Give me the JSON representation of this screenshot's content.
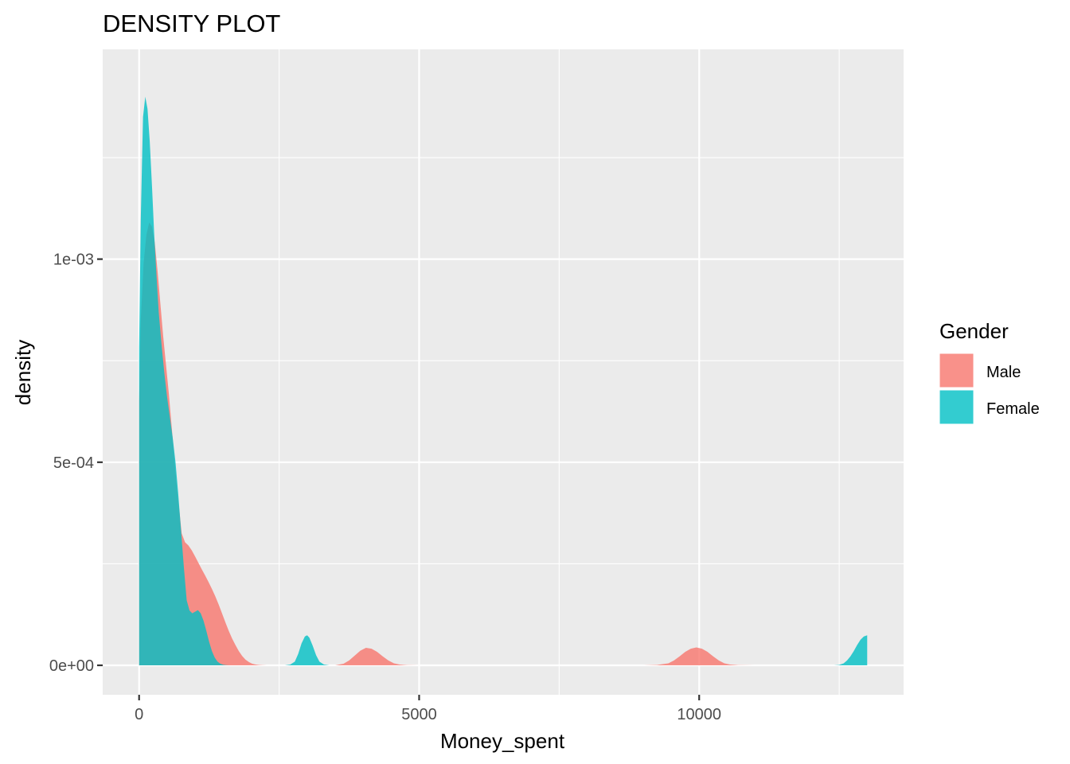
{
  "chart_data": {
    "type": "area",
    "subtype": "density",
    "title": "DENSITY PLOT",
    "xlabel": "Money_spent",
    "ylabel": "density",
    "xlim": [
      -650,
      13650
    ],
    "ylim": [
      -7.25e-05,
      0.0015165
    ],
    "x_ticks": [
      {
        "value": 0,
        "label": "0"
      },
      {
        "value": 5000,
        "label": "5000"
      },
      {
        "value": 10000,
        "label": "10000"
      }
    ],
    "x_minor_ticks": [
      2500,
      7500,
      12500
    ],
    "y_ticks": [
      {
        "value": 0,
        "label": "0e+00"
      },
      {
        "value": 0.0005,
        "label": "5e-04"
      },
      {
        "value": 0.001,
        "label": "1e-03"
      }
    ],
    "y_minor_ticks": [
      0.00025,
      0.00075,
      0.00125
    ],
    "grid": true,
    "panel_background": "#EBEBEB",
    "legend": {
      "title": "Gender",
      "position": "right",
      "entries": [
        {
          "label": "Male",
          "color": "#F8766D"
        },
        {
          "label": "Female",
          "color": "#00BFC4"
        }
      ]
    },
    "fill_alpha": 0.8,
    "series": [
      {
        "name": "Male",
        "color": "#F8766D",
        "x": [
          0,
          30,
          80,
          130,
          180,
          230,
          280,
          330,
          380,
          430,
          480,
          530,
          580,
          630,
          680,
          720,
          760,
          820,
          880,
          940,
          1000,
          1060,
          1120,
          1180,
          1240,
          1300,
          1360,
          1420,
          1480,
          1540,
          1600,
          1660,
          1720,
          1780,
          1840,
          1900,
          1960,
          2020,
          2080,
          2140,
          2200,
          2280,
          2380,
          2500,
          2640,
          2780,
          2920,
          3060,
          3200,
          3340,
          3500,
          3650,
          3750,
          3850,
          3950,
          4050,
          4150,
          4250,
          4350,
          4450,
          4550,
          4650,
          4780,
          5000,
          6000,
          7000,
          8000,
          9000,
          9250,
          9450,
          9550,
          9650,
          9750,
          9850,
          9950,
          10050,
          10150,
          10250,
          10350,
          10450,
          10550,
          10700,
          11000,
          12000,
          12500,
          13000
        ],
        "density": [
          0.00065,
          0.00085,
          0.00099,
          0.00106,
          0.00109,
          0.00108,
          0.00104,
          0.00097,
          0.00089,
          0.00081,
          0.00074,
          0.00067,
          0.00059,
          0.00051,
          0.00043,
          0.00038,
          0.000325,
          0.000303,
          0.000295,
          0.000283,
          0.000268,
          0.000252,
          0.000236,
          0.000221,
          0.000205,
          0.000188,
          0.00017,
          0.00015,
          0.000128,
          0.000106,
          8.5e-05,
          6.6e-05,
          5e-05,
          3.5e-05,
          2.3e-05,
          1.4e-05,
          8e-06,
          4e-06,
          2e-06,
          1e-06,
          5e-07,
          0,
          0,
          0,
          0,
          0,
          0,
          0,
          0,
          0,
          0,
          4e-06,
          1.2e-05,
          2.4e-05,
          3.6e-05,
          4.3e-05,
          4.1e-05,
          3.3e-05,
          2.2e-05,
          1.2e-05,
          5e-06,
          2e-06,
          5e-07,
          0,
          0,
          0,
          0,
          0,
          1e-06,
          5e-06,
          1.2e-05,
          2.2e-05,
          3.3e-05,
          4.1e-05,
          4.4e-05,
          4.1e-05,
          3.3e-05,
          2.2e-05,
          1.2e-05,
          5e-06,
          2e-06,
          5e-07,
          0,
          0,
          0,
          0
        ]
      },
      {
        "name": "Female",
        "color": "#00BFC4",
        "x": [
          0,
          30,
          70,
          110,
          150,
          190,
          230,
          270,
          310,
          350,
          400,
          450,
          500,
          550,
          600,
          650,
          700,
          750,
          800,
          850,
          900,
          950,
          1000,
          1050,
          1100,
          1150,
          1200,
          1250,
          1300,
          1350,
          1400,
          1450,
          1500,
          1550,
          1600,
          1650,
          1700,
          1800,
          1900,
          2000,
          2300,
          2600,
          2700,
          2780,
          2840,
          2900,
          2960,
          3000,
          3040,
          3100,
          3160,
          3220,
          3300,
          3400,
          3600,
          4000,
          6000,
          8000,
          10000,
          12000,
          12400,
          12500,
          12580,
          12640,
          12700,
          12760,
          12820,
          12880,
          12940,
          13000
        ],
        "density": [
          0.00078,
          0.0011,
          0.00135,
          0.0014,
          0.00137,
          0.00129,
          0.00118,
          0.00106,
          0.00096,
          0.00087,
          0.00079,
          0.00072,
          0.00066,
          0.00061,
          0.00056,
          0.0005,
          0.00042,
          0.00033,
          0.00024,
          0.00016,
          0.000135,
          0.000128,
          0.000132,
          0.000136,
          0.000128,
          0.00011,
          8.5e-05,
          5.8e-05,
          3.5e-05,
          1.9e-05,
          9e-06,
          4e-06,
          1.5e-06,
          5e-07,
          0,
          0,
          0,
          0,
          0,
          0,
          0,
          0,
          2e-06,
          9e-06,
          2.8e-05,
          5.4e-05,
          7.1e-05,
          7.4e-05,
          6.8e-05,
          4.8e-05,
          2.5e-05,
          9e-06,
          2e-06,
          0,
          0,
          0,
          0,
          0,
          0,
          0,
          0,
          1e-06,
          5e-06,
          1.2e-05,
          2.2e-05,
          3.5e-05,
          5e-05,
          6.3e-05,
          7.1e-05,
          7.4e-05
        ]
      }
    ]
  }
}
